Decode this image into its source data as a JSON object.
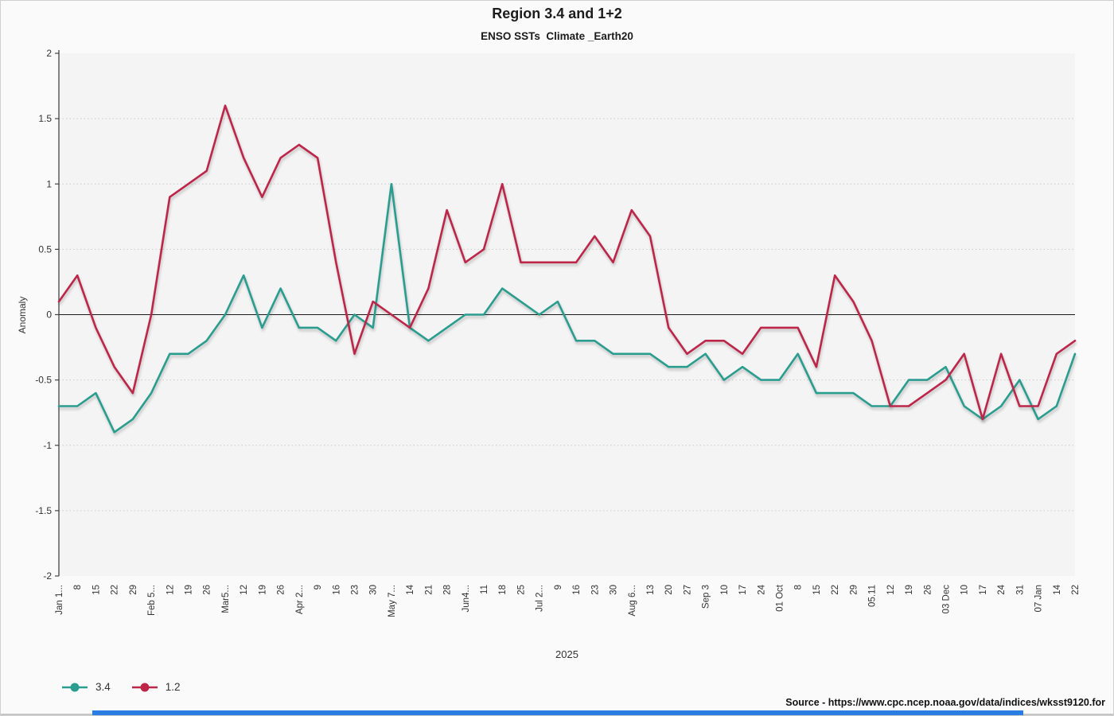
{
  "header": {
    "title": "Region 3.4 and 1+2",
    "subtitle": "ENSO SSTs  Climate _Earth20"
  },
  "chart_data": {
    "type": "line",
    "title": "Region 3.4 and 1+2",
    "subtitle": "ENSO SSTs  Climate _Earth20",
    "xlabel": "2025",
    "ylabel": "Anomaly",
    "ylim": [
      -2,
      2
    ],
    "yticks": [
      "2",
      "1.5",
      "1",
      "0.5",
      "0",
      "-0.5",
      "-1",
      "-1.5",
      "-2"
    ],
    "grid": "horizontal-dotted",
    "zero_line": true,
    "legend_position": "bottom-left",
    "categories": [
      "Jan 1...",
      "8",
      "15",
      "22",
      "29",
      "Feb 5...",
      "12",
      "19",
      "26",
      "Mar5...",
      "12",
      "19",
      "26",
      "Apr 2...",
      "9",
      "16",
      "23",
      "30",
      "May 7...",
      "14",
      "21",
      "28",
      "Jun4...",
      "11",
      "18",
      "25",
      "Jul 2...",
      "9",
      "16",
      "23",
      "30",
      "Aug 6...",
      "13",
      "20",
      "27",
      "Sep 3",
      "10",
      "17",
      "24",
      "01 Oct",
      "8",
      "15",
      "22",
      "29",
      "05.11",
      "12",
      "19",
      "26",
      "03 Dec",
      "10",
      "17",
      "24",
      "31",
      "07 Jan",
      "14",
      "22"
    ],
    "series": [
      {
        "name": "3.4",
        "color": "#2a9d8f",
        "values": [
          -0.7,
          -0.7,
          -0.6,
          -0.9,
          -0.8,
          -0.6,
          -0.3,
          -0.3,
          -0.2,
          0,
          0.3,
          -0.1,
          0.2,
          -0.1,
          -0.1,
          -0.2,
          0,
          -0.1,
          1,
          -0.1,
          -0.2,
          -0.1,
          0,
          0,
          0.2,
          0.1,
          0,
          0.1,
          -0.2,
          -0.2,
          -0.3,
          -0.3,
          -0.3,
          -0.4,
          -0.4,
          -0.3,
          -0.5,
          -0.4,
          -0.5,
          -0.5,
          -0.3,
          -0.6,
          -0.6,
          -0.6,
          -0.7,
          -0.7,
          -0.5,
          -0.5,
          -0.4,
          -0.7,
          -0.8,
          -0.7,
          -0.5,
          -0.8,
          -0.7,
          -0.3
        ]
      },
      {
        "name": "1.2",
        "color": "#bc2649",
        "values": [
          0.1,
          0.3,
          -0.1,
          -0.4,
          -0.6,
          0,
          0.9,
          1,
          1.1,
          1.6,
          1.2,
          0.9,
          1.2,
          1.3,
          1.2,
          0.4,
          -0.3,
          0.1,
          0,
          -0.1,
          0.2,
          0.8,
          0.4,
          0.5,
          1,
          0.4,
          0.4,
          0.4,
          0.4,
          0.6,
          0.4,
          0.8,
          0.6,
          -0.1,
          -0.3,
          -0.2,
          -0.2,
          -0.3,
          -0.1,
          -0.1,
          -0.1,
          -0.4,
          0.3,
          0.1,
          -0.2,
          -0.7,
          -0.7,
          -0.6,
          -0.5,
          -0.3,
          -0.8,
          -0.3,
          -0.7,
          -0.7,
          -0.3,
          -0.2
        ]
      }
    ]
  },
  "footer": {
    "source": "Source - https://www.cpc.ncep.noaa.gov/data/indices/wksst9120.for"
  },
  "colors": {
    "canvas_bg": "#fafafa",
    "plot_bg": "#f4f4f4",
    "grid": "#c9c9c9",
    "zero_line": "#1a1a1a",
    "axis": "#444444",
    "tick_text": "#333333",
    "blue_bar": "#2a7de1",
    "bottom_strip": "#c6c6c6"
  }
}
